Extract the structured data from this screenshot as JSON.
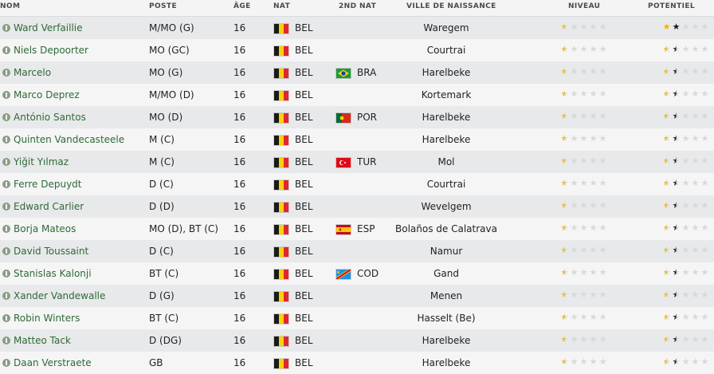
{
  "headers": {
    "nom": "NOM",
    "poste": "POSTE",
    "age": "ÂGE",
    "nat": "NAT",
    "nat2": "2ND NAT",
    "ville": "VILLE DE NAISSANCE",
    "niveau": "NIVEAU",
    "potentiel": "POTENTIEL"
  },
  "colors": {
    "name_text": "#2e6a36",
    "star_gold": "#f0b400",
    "star_black": "#1a1a1a",
    "star_empty": "#d7d8da"
  },
  "flags": {
    "BEL": [
      "#1a1a1a",
      "#f6d30a",
      "#e2262d"
    ],
    "BRA": "brazil",
    "POR": "portugal",
    "TUR": "turkey",
    "ESP": "spain",
    "COD": "congo"
  },
  "players": [
    {
      "name": "Ward Verfaillie",
      "poste": "M/MO (G)",
      "age": "16",
      "nat": "BEL",
      "nat2": "",
      "ville": "Waregem",
      "niveau": 0.5,
      "potentiel": [
        1,
        1
      ]
    },
    {
      "name": "Niels Depoorter",
      "poste": "MO (GC)",
      "age": "16",
      "nat": "BEL",
      "nat2": "",
      "ville": "Courtrai",
      "niveau": 0.5,
      "potentiel": [
        0.5,
        0.5
      ]
    },
    {
      "name": "Marcelo",
      "poste": "MO (G)",
      "age": "16",
      "nat": "BEL",
      "nat2": "BRA",
      "ville": "Harelbeke",
      "niveau": 0.5,
      "potentiel": [
        0.5,
        0.5
      ]
    },
    {
      "name": "Marco Deprez",
      "poste": "M/MO (D)",
      "age": "16",
      "nat": "BEL",
      "nat2": "",
      "ville": "Kortemark",
      "niveau": 0.5,
      "potentiel": [
        0.5,
        0.5
      ]
    },
    {
      "name": "António Santos",
      "poste": "MO (D)",
      "age": "16",
      "nat": "BEL",
      "nat2": "POR",
      "ville": "Harelbeke",
      "niveau": 0.5,
      "potentiel": [
        0.5,
        0.5
      ]
    },
    {
      "name": "Quinten Vandecasteele",
      "poste": "M (C)",
      "age": "16",
      "nat": "BEL",
      "nat2": "",
      "ville": "Harelbeke",
      "niveau": 0.5,
      "potentiel": [
        0.5,
        0.5
      ]
    },
    {
      "name": "Yiğit Yılmaz",
      "poste": "M (C)",
      "age": "16",
      "nat": "BEL",
      "nat2": "TUR",
      "ville": "Mol",
      "niveau": 0.5,
      "potentiel": [
        0.5,
        0.5
      ]
    },
    {
      "name": "Ferre Depuydt",
      "poste": "D (C)",
      "age": "16",
      "nat": "BEL",
      "nat2": "",
      "ville": "Courtrai",
      "niveau": 0.5,
      "potentiel": [
        0.5,
        0.5
      ]
    },
    {
      "name": "Edward Carlier",
      "poste": "D (D)",
      "age": "16",
      "nat": "BEL",
      "nat2": "",
      "ville": "Wevelgem",
      "niveau": 0.5,
      "potentiel": [
        0.5,
        0.5
      ]
    },
    {
      "name": "Borja Mateos",
      "poste": "MO (D), BT (C)",
      "age": "16",
      "nat": "BEL",
      "nat2": "ESP",
      "ville": "Bolaños de Calatrava",
      "niveau": 0.5,
      "potentiel": [
        0.5,
        0.5
      ]
    },
    {
      "name": "David Toussaint",
      "poste": "D (C)",
      "age": "16",
      "nat": "BEL",
      "nat2": "",
      "ville": "Namur",
      "niveau": 0.5,
      "potentiel": [
        0.5,
        0.5
      ]
    },
    {
      "name": "Stanislas Kalonji",
      "poste": "BT (C)",
      "age": "16",
      "nat": "BEL",
      "nat2": "COD",
      "ville": "Gand",
      "niveau": 0.5,
      "potentiel": [
        0.5,
        0.5
      ]
    },
    {
      "name": "Xander Vandewalle",
      "poste": "D (G)",
      "age": "16",
      "nat": "BEL",
      "nat2": "",
      "ville": "Menen",
      "niveau": 0.5,
      "potentiel": [
        0.5,
        0.5
      ]
    },
    {
      "name": "Robin Winters",
      "poste": "BT (C)",
      "age": "16",
      "nat": "BEL",
      "nat2": "",
      "ville": "Hasselt (Be)",
      "niveau": 0.5,
      "potentiel": [
        0.5,
        0.5
      ]
    },
    {
      "name": "Matteo Tack",
      "poste": "D (DG)",
      "age": "16",
      "nat": "BEL",
      "nat2": "",
      "ville": "Harelbeke",
      "niveau": 0.5,
      "potentiel": [
        0.5,
        0.5
      ]
    },
    {
      "name": "Daan Verstraete",
      "poste": "GB",
      "age": "16",
      "nat": "BEL",
      "nat2": "",
      "ville": "Harelbeke",
      "niveau": 0.5,
      "potentiel": [
        0.5,
        0.5
      ]
    }
  ]
}
